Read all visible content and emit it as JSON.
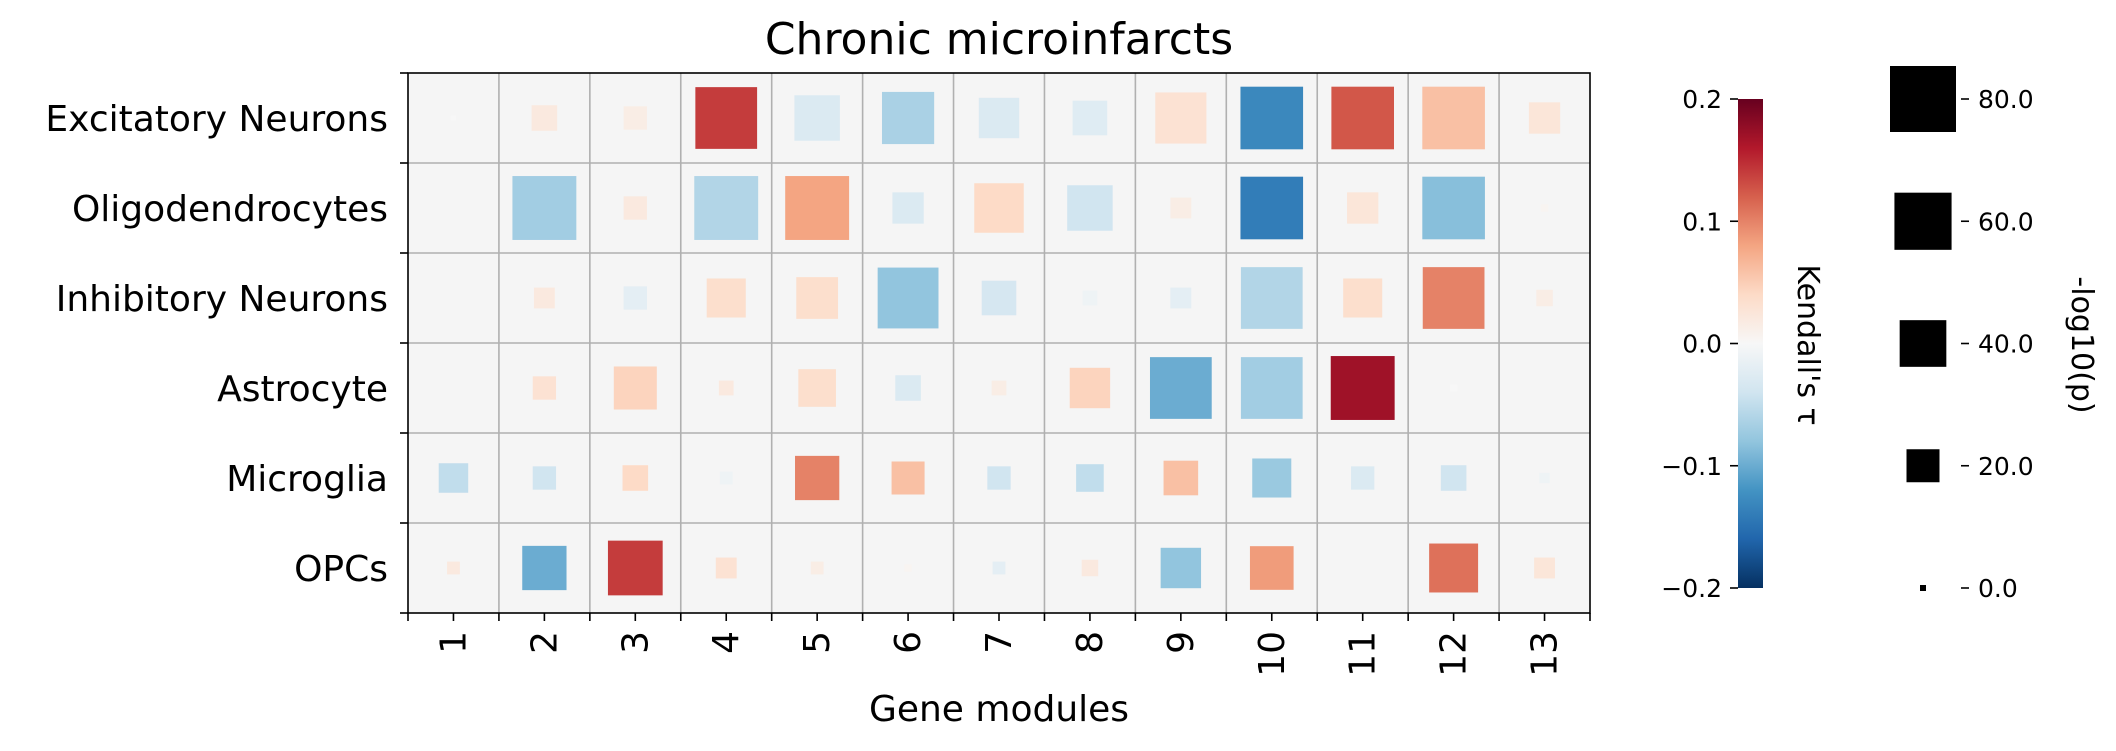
{
  "chart_data": {
    "type": "heatmap",
    "title": "Chronic microinfarcts",
    "xlabel": "Gene modules",
    "ylabel": "",
    "x": [
      "1",
      "2",
      "3",
      "4",
      "5",
      "6",
      "7",
      "8",
      "9",
      "10",
      "11",
      "12",
      "13"
    ],
    "y": [
      "Excitatory Neurons",
      "Oligodendrocytes",
      "Inhibitory Neurons",
      "Astrocyte",
      "Microglia",
      "OPCs"
    ],
    "value_encoding": "color = Kendall's τ, square size = -log10(p)",
    "tau": [
      [
        0.0,
        0.02,
        0.015,
        0.14,
        -0.03,
        -0.065,
        -0.03,
        -0.025,
        0.03,
        -0.13,
        0.125,
        0.06,
        0.025
      ],
      [
        0.0,
        -0.07,
        0.02,
        -0.06,
        0.08,
        -0.03,
        0.04,
        -0.04,
        0.015,
        -0.14,
        0.025,
        -0.085,
        0.005
      ],
      [
        0.0,
        0.02,
        -0.02,
        0.035,
        0.035,
        -0.08,
        -0.035,
        -0.01,
        -0.02,
        -0.06,
        0.035,
        0.1,
        0.015
      ],
      [
        0.0,
        0.03,
        0.045,
        0.02,
        0.035,
        -0.03,
        0.015,
        0.045,
        -0.1,
        -0.07,
        0.17,
        0.0,
        0.0
      ],
      [
        -0.05,
        -0.04,
        0.04,
        -0.01,
        0.1,
        0.06,
        -0.04,
        -0.05,
        0.06,
        -0.075,
        -0.03,
        -0.04,
        -0.01
      ],
      [
        0.02,
        -0.1,
        0.14,
        0.03,
        0.015,
        0.005,
        -0.02,
        0.02,
        -0.08,
        0.085,
        0.0,
        0.11,
        0.025
      ]
    ],
    "neglog10p": [
      [
        0.5,
        12,
        10,
        70,
        38,
        50,
        30,
        22,
        48,
        72,
        72,
        72,
        18
      ],
      [
        0,
        75,
        10,
        75,
        75,
        18,
        45,
        38,
        8,
        72,
        18,
        72,
        1
      ],
      [
        0,
        8,
        10,
        28,
        32,
        68,
        22,
        4,
        8,
        70,
        28,
        70,
        5
      ],
      [
        0,
        10,
        34,
        4,
        26,
        12,
        4,
        30,
        70,
        70,
        75,
        1,
        0
      ],
      [
        16,
        10,
        12,
        3,
        36,
        20,
        10,
        14,
        22,
        28,
        10,
        12,
        2
      ],
      [
        3,
        36,
        55,
        8,
        3,
        1,
        3,
        5,
        30,
        35,
        0,
        44,
        8
      ]
    ],
    "colorbar": {
      "label": "Kendall's τ",
      "range": [
        -0.2,
        0.2
      ],
      "ticks": [
        "0.2",
        "0.1",
        "0.0",
        "−0.1",
        "−0.2"
      ],
      "tick_values": [
        0.2,
        0.1,
        0.0,
        -0.1,
        -0.2
      ]
    },
    "size_legend": {
      "label": "-log10(p)",
      "entries": [
        "80.0",
        "60.0",
        "40.0",
        "20.0",
        "0.0"
      ],
      "values": [
        80,
        60,
        40,
        20,
        0
      ]
    },
    "grid": true
  }
}
